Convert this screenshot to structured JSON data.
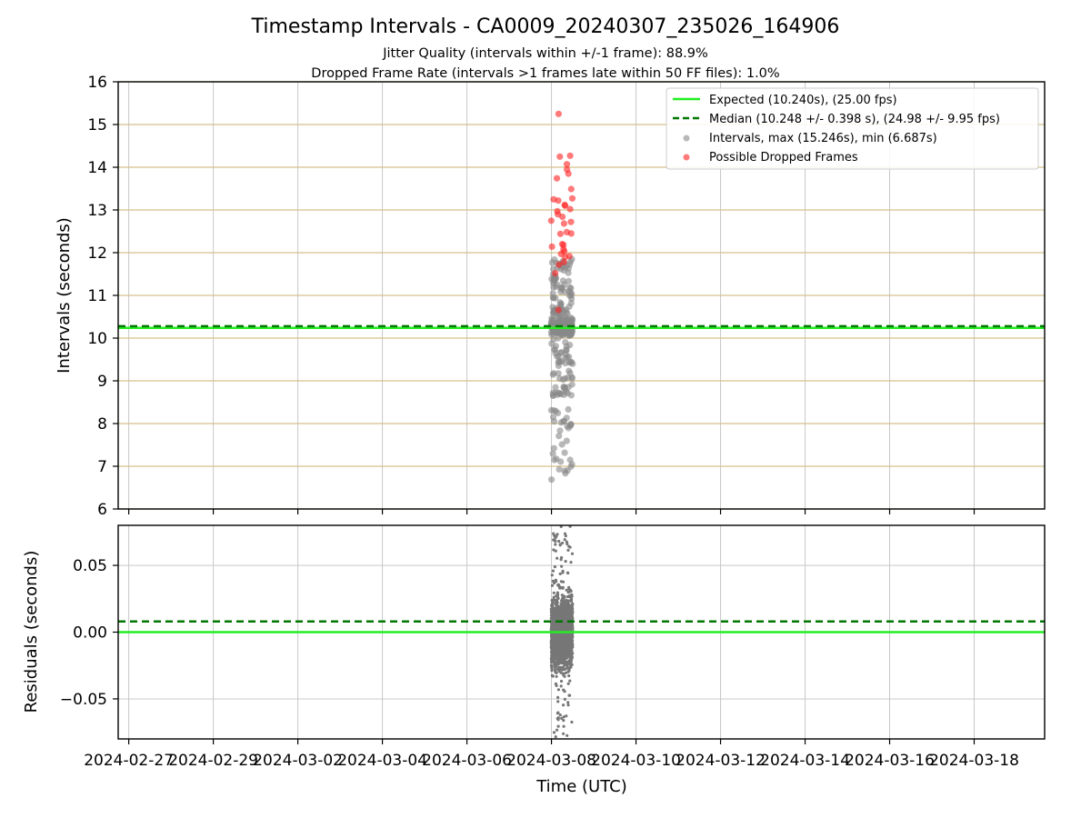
{
  "title": "Timestamp Intervals - CA0009_20240307_235026_164906",
  "subtitle_lines": [
    "Jitter Quality (intervals within +/-1 frame): 88.9%",
    "Dropped Frame Rate (intervals >1 frames late within 50 FF files): 1.0%"
  ],
  "colors": {
    "expected": "#22ee22",
    "median": "#007700",
    "intervals": "#888888",
    "dropped": "#ff2222",
    "gridline_top": "#d4c08a",
    "gridline": "#c8c8c8"
  },
  "chart_data": [
    {
      "type": "scatter",
      "panel": "top",
      "xlabel": "",
      "ylabel": "Intervals (seconds)",
      "ylim": [
        6,
        16
      ],
      "yticks": [
        "6",
        "7",
        "8",
        "9",
        "10",
        "11",
        "12",
        "13",
        "14",
        "15",
        "16"
      ],
      "xlim": [
        "2024-02-26T18:00",
        "2024-03-19T16:00"
      ],
      "x_tick_dates": [
        "2024-02-27",
        "2024-02-29",
        "2024-03-02",
        "2024-03-04",
        "2024-03-06",
        "2024-03-08",
        "2024-03-10",
        "2024-03-12",
        "2024-03-14",
        "2024-03-16",
        "2024-03-18"
      ],
      "grid": true,
      "legend_position": "top-right",
      "expected_line": {
        "value": 10.24,
        "label": "Expected (10.240s), (25.00 fps)"
      },
      "median_line": {
        "value": 10.248,
        "label": "Median (10.248 +/- 0.398 s), (24.98 +/- 9.95 fps)"
      },
      "series": [
        {
          "name": "Intervals, max (15.246s), min (6.687s)",
          "x_range": [
            "2024-03-07T23:50",
            "2024-03-08T12:00"
          ],
          "y_max": 15.246,
          "y_min": 6.687,
          "approx_count": 420
        },
        {
          "name": "Possible Dropped Frames",
          "y_approx": [
            15.25,
            14.27,
            14.25,
            14.07,
            13.95,
            13.85,
            13.74,
            13.49,
            13.27,
            13.25,
            13.22,
            13.12,
            13.1,
            13.02,
            12.97,
            12.9,
            12.84,
            12.75,
            12.72,
            12.68,
            12.48,
            12.45,
            12.44,
            12.2,
            12.18,
            12.14,
            12.08,
            12.03,
            11.97,
            11.92,
            11.9,
            11.78,
            11.72,
            11.52,
            10.66
          ]
        }
      ]
    },
    {
      "type": "scatter",
      "panel": "bottom",
      "xlabel": "Time (UTC)",
      "ylabel": "Residuals (seconds)",
      "ylim": [
        -0.08,
        0.08
      ],
      "yticks": [
        "−0.05",
        "0.00",
        "0.05"
      ],
      "ytick_values": [
        -0.05,
        0.0,
        0.05
      ],
      "xlim": [
        "2024-02-26T18:00",
        "2024-03-19T16:00"
      ],
      "grid": true,
      "expected_line": {
        "value": 0.0
      },
      "median_line": {
        "value": 0.008
      },
      "series": [
        {
          "name": "Residuals",
          "x_range": [
            "2024-03-07T23:50",
            "2024-03-08T12:00"
          ],
          "y_max": 0.08,
          "y_min": -0.08,
          "approx_count": 2400
        }
      ]
    }
  ]
}
